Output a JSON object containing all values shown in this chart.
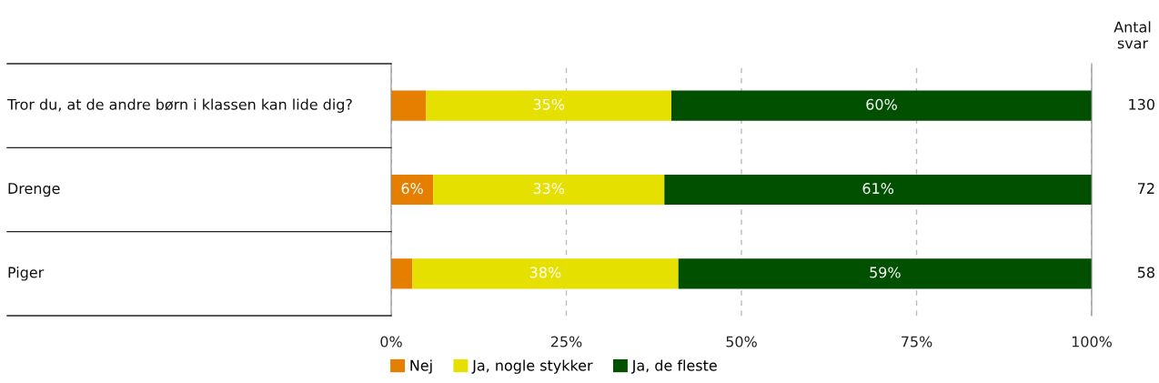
{
  "chart_data": {
    "type": "bar",
    "orientation": "horizontal",
    "stacked": true,
    "categories": [
      "Tror du, at de andre børn i klassen kan lide dig?",
      "Drenge",
      "Piger"
    ],
    "series": [
      {
        "name": "Nej",
        "color": "#e67e00",
        "values": [
          5,
          6,
          3
        ],
        "value_labels": [
          null,
          "6%",
          null
        ]
      },
      {
        "name": "Ja, nogle stykker",
        "color": "#e6e000",
        "values": [
          35,
          33,
          38
        ],
        "value_labels": [
          "35%",
          "33%",
          "38%"
        ]
      },
      {
        "name": "Ja, de fleste",
        "color": "#005000",
        "values": [
          60,
          61,
          59
        ],
        "value_labels": [
          "60%",
          "61%",
          "59%"
        ]
      }
    ],
    "xlim": [
      0,
      100
    ],
    "xticks": [
      {
        "value": 0,
        "label": "0%"
      },
      {
        "value": 25,
        "label": "25%"
      },
      {
        "value": 50,
        "label": "50%"
      },
      {
        "value": 75,
        "label": "75%"
      },
      {
        "value": 100,
        "label": "100%"
      }
    ],
    "grid": "x",
    "legend": "bottom",
    "annotations": [
      "Antal svar",
      "130",
      "72",
      "58"
    ]
  }
}
